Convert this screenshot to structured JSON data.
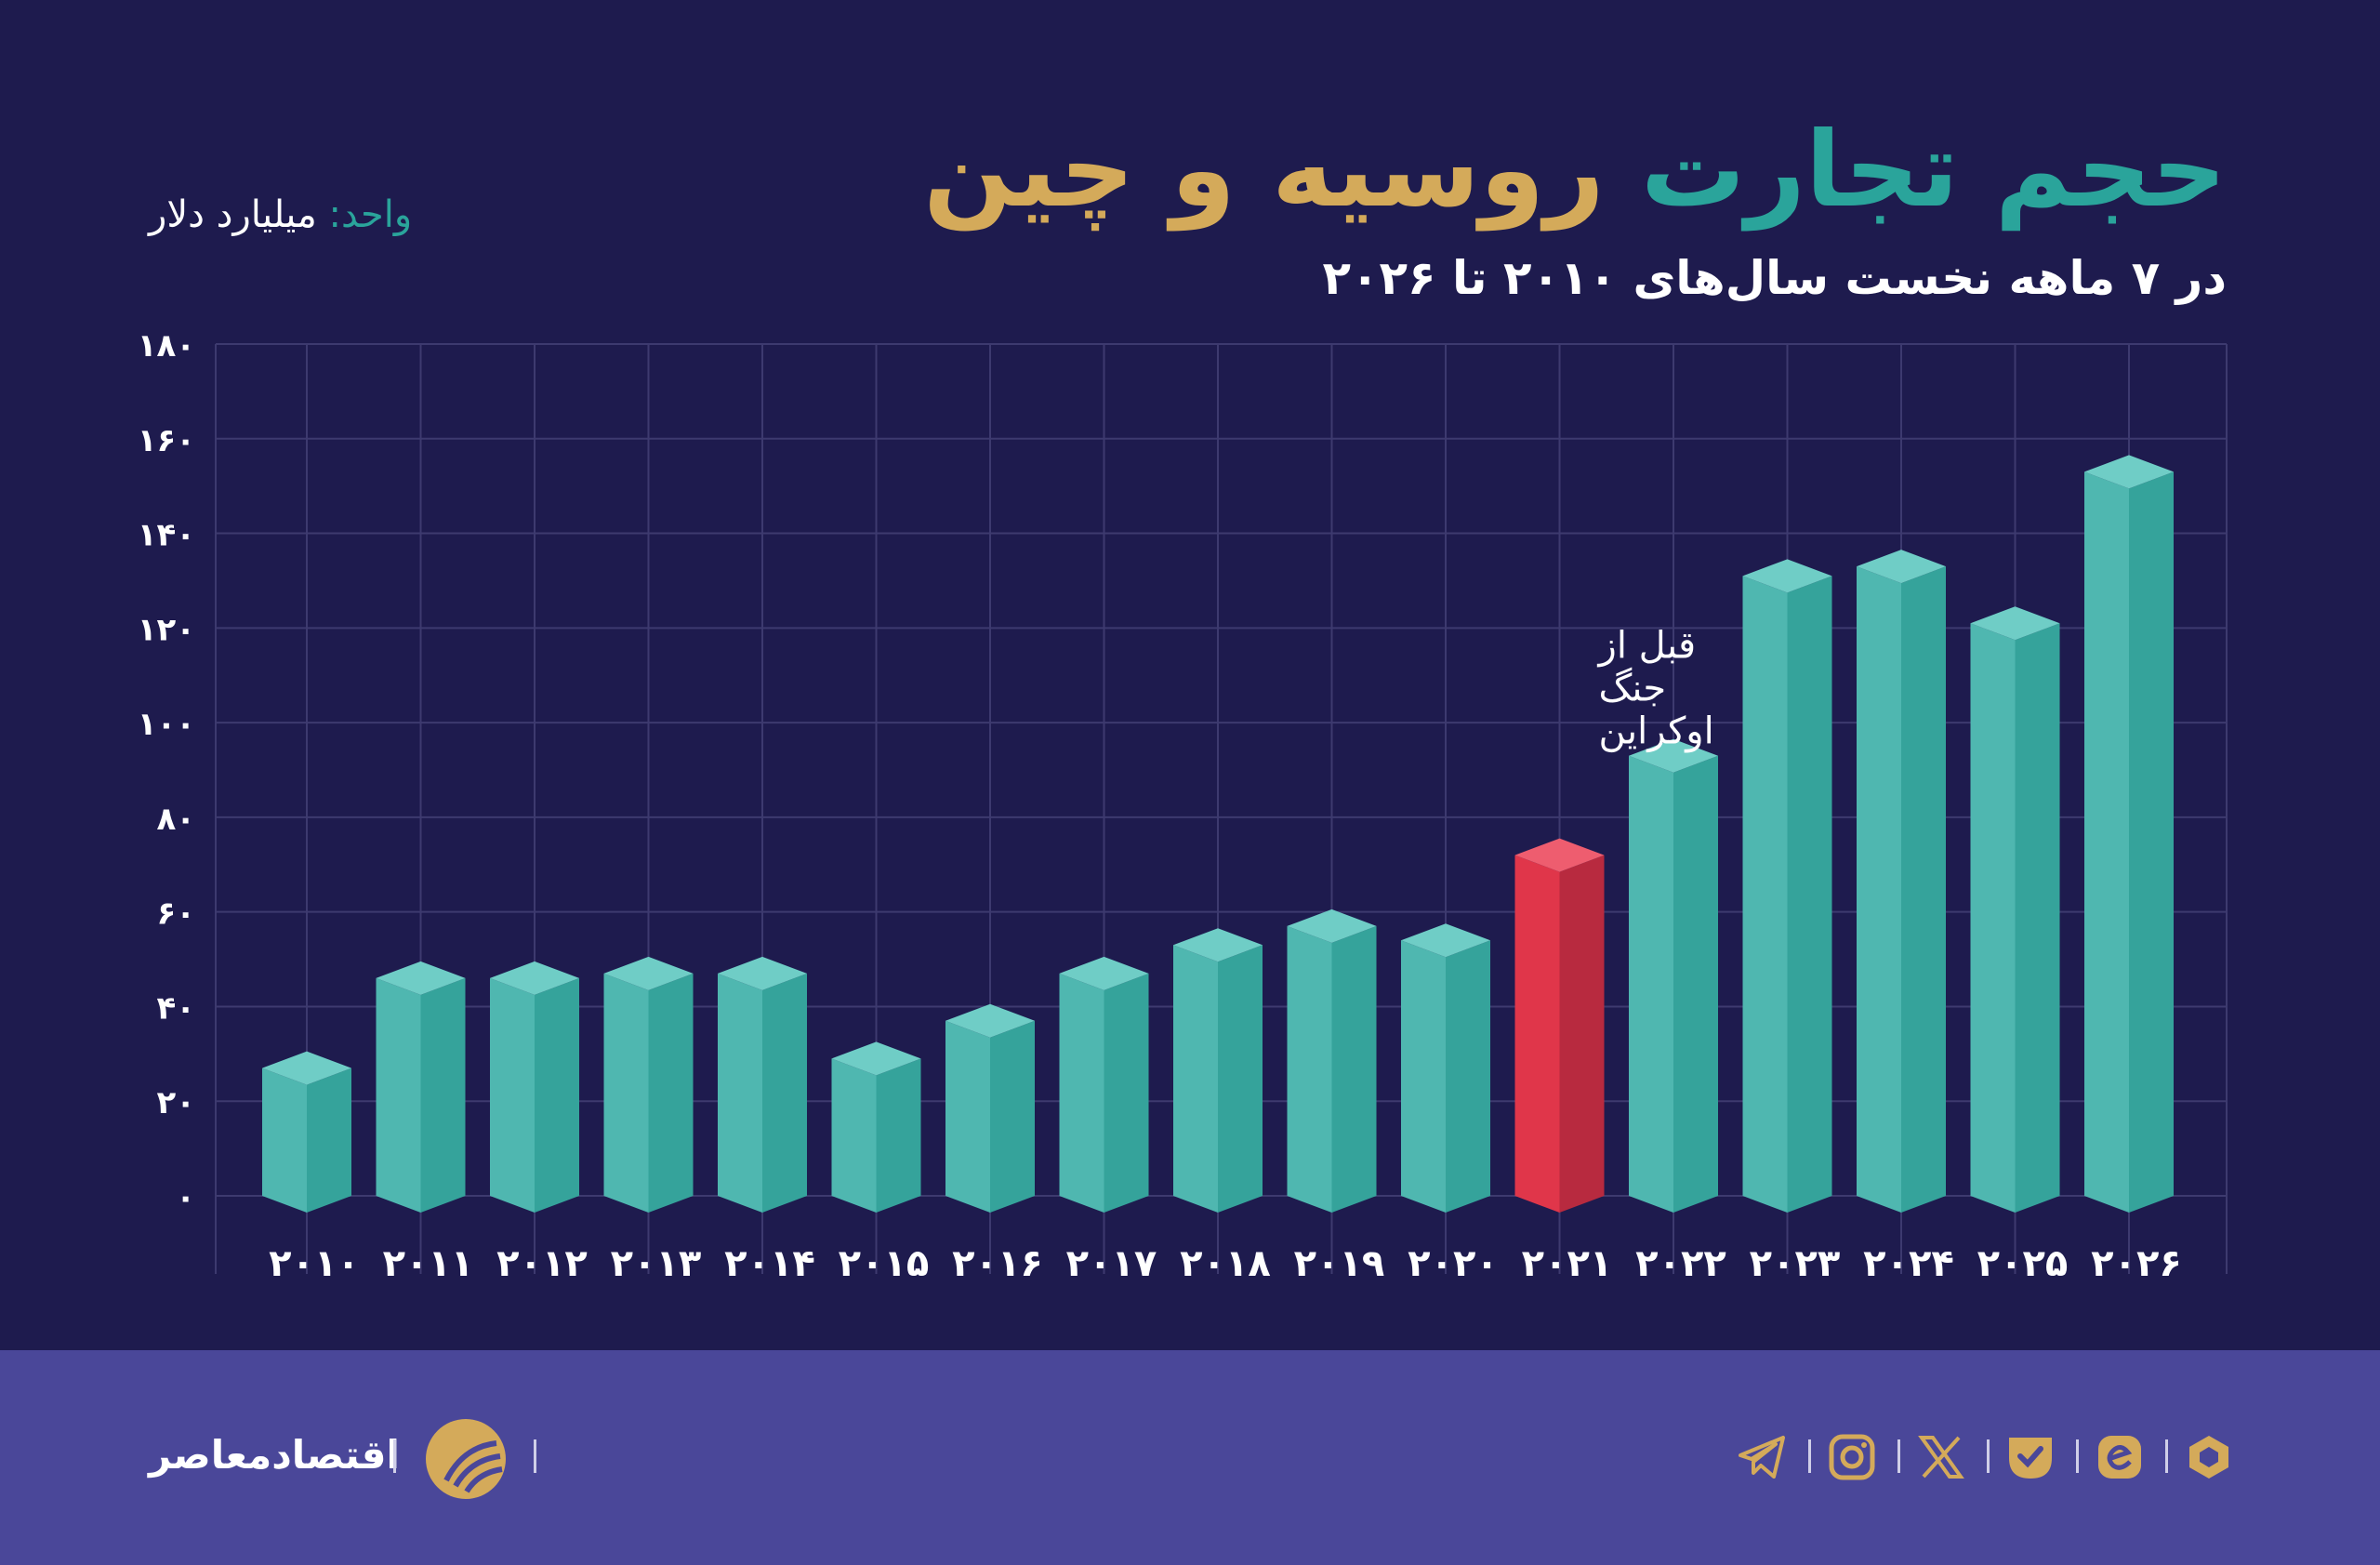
{
  "header": {
    "title_part1": "حجم تجارت",
    "title_part2": "روسیه و چین",
    "subtitle": "در ۷ ماهه نخست سال‌های ۲۰۱۰ تا ۲۰۲۶",
    "unit_label": "واحد:",
    "unit_value": "میلیارد دلار"
  },
  "chart_data": {
    "type": "bar",
    "categories": [
      "۲۰۱۰",
      "۲۰۱۱",
      "۲۰۱۲",
      "۲۰۱۳",
      "۲۰۱۴",
      "۲۰۱۵",
      "۲۰۱۶",
      "۲۰۱۷",
      "۲۰۱۸",
      "۲۰۱۹",
      "۲۰۲۰",
      "۲۰۲۱",
      "۲۰۲۲",
      "۲۰۲۳",
      "۲۰۲۴",
      "۲۰۲۵",
      "۲۰۲۶"
    ],
    "values": [
      27,
      46,
      46,
      47,
      47,
      29,
      37,
      47,
      53,
      57,
      54,
      72,
      93,
      131,
      133,
      121,
      153
    ],
    "highlight_index": 11,
    "annotation": {
      "index": 11,
      "lines": [
        "قبل از",
        "جنگ",
        "اوکراین"
      ]
    },
    "yticks": [
      "۰",
      "۲۰",
      "۴۰",
      "۶۰",
      "۸۰",
      "۱۰۰",
      "۱۲۰",
      "۱۴۰",
      "۱۶۰",
      "۱۸۰"
    ],
    "ylim": [
      0,
      180
    ],
    "grid": true,
    "colors": {
      "bar_front": "#4fb7b0",
      "bar_side": "#35a39b",
      "bar_top": "#6fcdc6",
      "highlight_front": "#e0364a",
      "highlight_side": "#b82a3f",
      "highlight_top": "#ee5d6f",
      "grid": "#3d3a6f"
    }
  },
  "footer": {
    "brand_name": "اقتصادمعاصر",
    "icons": [
      "hexagon-icon",
      "eitaa-icon",
      "bale-icon",
      "x-icon",
      "instagram-icon",
      "telegram-icon"
    ]
  },
  "colors": {
    "background": "#1e1b4e",
    "footer": "#4a4799",
    "accent_teal": "#2aa49b",
    "accent_gold": "#d4aa5a"
  }
}
